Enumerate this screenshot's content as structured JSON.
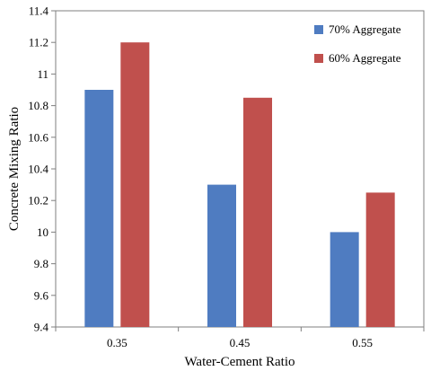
{
  "chart_data": {
    "type": "bar",
    "categories": [
      "0.35",
      "0.45",
      "0.55"
    ],
    "series": [
      {
        "name": "70% Aggregate",
        "values": [
          10.9,
          10.3,
          10.0
        ],
        "color": "#4f7cc1"
      },
      {
        "name": "60% Aggregate",
        "values": [
          11.2,
          10.85,
          10.25
        ],
        "color": "#c0504d"
      }
    ],
    "title": "",
    "xlabel": "Water-Cement Ratio",
    "ylabel": "Concrete Mixing Ratio",
    "ylim": [
      9.4,
      11.4
    ],
    "yticks": [
      "9.4",
      "9.6",
      "9.8",
      "10",
      "10.2",
      "10.4",
      "10.6",
      "10.8",
      "11",
      "11.2",
      "11.4"
    ],
    "grid": false,
    "legend_position": "top-right"
  }
}
